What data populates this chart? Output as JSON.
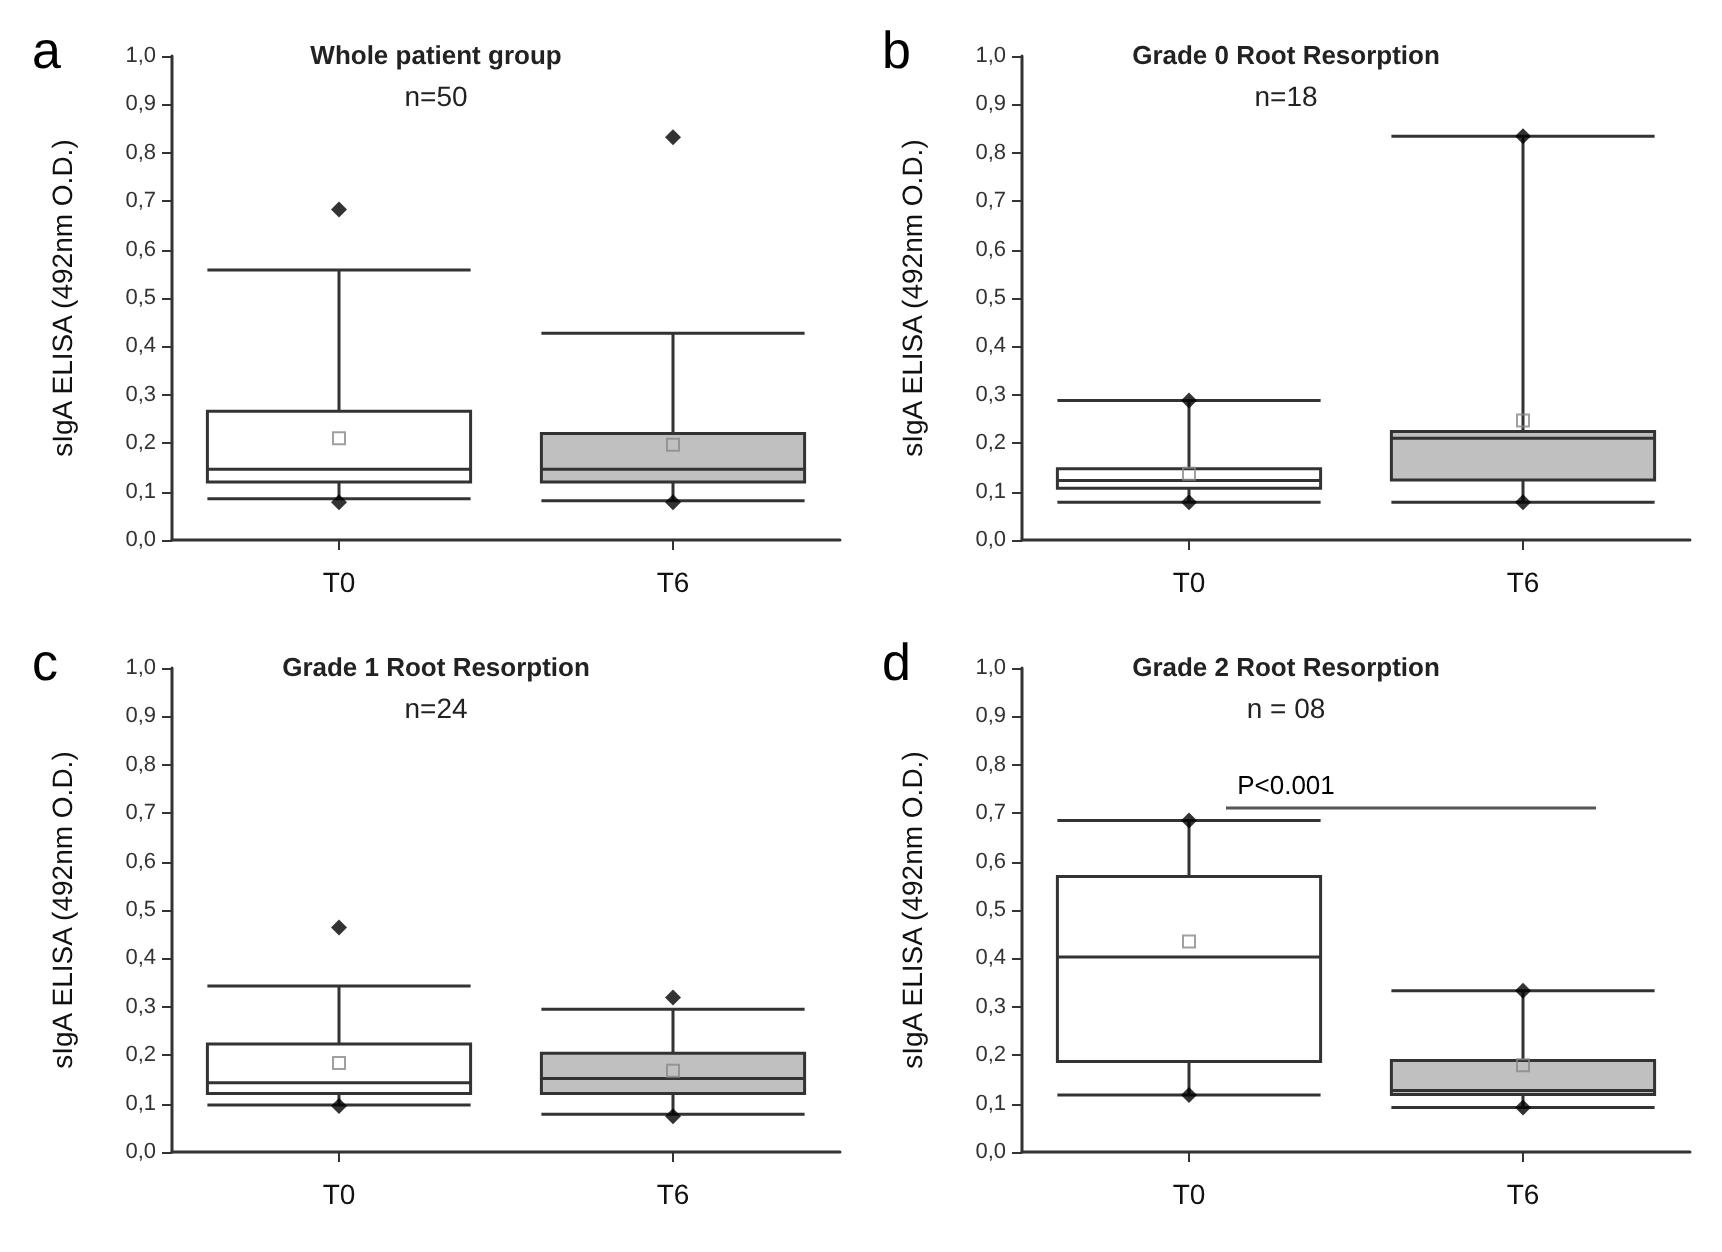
{
  "chart_data": [
    {
      "type": "box",
      "title": "Whole patient group",
      "subtitle": "n=50",
      "ylabel": "sIgA ELISA (492nm O.D.)",
      "categories": [
        "T0",
        "T6"
      ],
      "colors": [
        "#ffffff",
        "#c0c0c0"
      ],
      "ylim": [
        0,
        1
      ],
      "yticks": [
        {
          "value": 0,
          "label": "0,0"
        },
        {
          "value": 0.1,
          "label": "0,1"
        },
        {
          "value": 0.2,
          "label": "0,2"
        },
        {
          "value": 0.3,
          "label": "0,3"
        },
        {
          "value": 0.4,
          "label": "0,4"
        },
        {
          "value": 0.5,
          "label": "0,5"
        },
        {
          "value": 0.6,
          "label": "0,6"
        },
        {
          "value": 0.7,
          "label": "0,7"
        },
        {
          "value": 0.8,
          "label": "0,8"
        },
        {
          "value": 0.9,
          "label": "0,9"
        },
        {
          "value": 1,
          "label": "1,0"
        }
      ],
      "annotations": [
        "a"
      ],
      "boxes": [
        {
          "low": 0.085,
          "q1": 0.12,
          "median": 0.146,
          "q3": 0.266,
          "high": 0.558,
          "mean": 0.21,
          "outliers": [
            0.683,
            0.078
          ]
        },
        {
          "low": 0.081,
          "q1": 0.12,
          "median": 0.146,
          "q3": 0.22,
          "high": 0.427,
          "mean": 0.197,
          "outliers": [
            0.832,
            0.078
          ]
        }
      ]
    },
    {
      "type": "box",
      "title": "Grade 0 Root Resorption",
      "subtitle": "n=18",
      "ylabel": "sIgA ELISA (492nm O.D.)",
      "categories": [
        "T0",
        "T6"
      ],
      "colors": [
        "#ffffff",
        "#c0c0c0"
      ],
      "ylim": [
        0,
        1
      ],
      "yticks": [
        {
          "value": 0,
          "label": "0,0"
        },
        {
          "value": 0.1,
          "label": "0,1"
        },
        {
          "value": 0.2,
          "label": "0,2"
        },
        {
          "value": 0.3,
          "label": "0,3"
        },
        {
          "value": 0.4,
          "label": "0,4"
        },
        {
          "value": 0.5,
          "label": "0,5"
        },
        {
          "value": 0.6,
          "label": "0,6"
        },
        {
          "value": 0.7,
          "label": "0,7"
        },
        {
          "value": 0.8,
          "label": "0,8"
        },
        {
          "value": 0.9,
          "label": "0,9"
        },
        {
          "value": 1,
          "label": "1,0"
        }
      ],
      "annotations": [
        "b"
      ],
      "boxes": [
        {
          "low": 0.078,
          "q1": 0.107,
          "median": 0.123,
          "q3": 0.147,
          "high": 0.288,
          "mean": 0.137,
          "outliers": [
            0.288,
            0.078
          ]
        },
        {
          "low": 0.078,
          "q1": 0.124,
          "median": 0.21,
          "q3": 0.224,
          "high": 0.834,
          "mean": 0.247,
          "outliers": [
            0.834,
            0.078
          ]
        }
      ]
    },
    {
      "type": "box",
      "title": "Grade 1 Root Resorption",
      "subtitle": "n=24",
      "ylabel": "sIgA ELISA (492nm O.D.)",
      "categories": [
        "T0",
        "T6"
      ],
      "colors": [
        "#ffffff",
        "#c0c0c0"
      ],
      "ylim": [
        0,
        1
      ],
      "yticks": [
        {
          "value": 0,
          "label": "0,0"
        },
        {
          "value": 0.1,
          "label": "0,1"
        },
        {
          "value": 0.2,
          "label": "0,2"
        },
        {
          "value": 0.3,
          "label": "0,3"
        },
        {
          "value": 0.4,
          "label": "0,4"
        },
        {
          "value": 0.5,
          "label": "0,5"
        },
        {
          "value": 0.6,
          "label": "0,6"
        },
        {
          "value": 0.7,
          "label": "0,7"
        },
        {
          "value": 0.8,
          "label": "0,8"
        },
        {
          "value": 0.9,
          "label": "0,9"
        },
        {
          "value": 1,
          "label": "1,0"
        }
      ],
      "annotations": [
        "c"
      ],
      "boxes": [
        {
          "low": 0.097,
          "q1": 0.121,
          "median": 0.143,
          "q3": 0.223,
          "high": 0.343,
          "mean": 0.184,
          "outliers": [
            0.464,
            0.095
          ]
        },
        {
          "low": 0.078,
          "q1": 0.121,
          "median": 0.152,
          "q3": 0.204,
          "high": 0.295,
          "mean": 0.168,
          "outliers": [
            0.319,
            0.074
          ]
        }
      ]
    },
    {
      "type": "box",
      "title": "Grade 2 Root Resorption",
      "subtitle": "n = 08",
      "ylabel": "sIgA ELISA (492nm O.D.)",
      "categories": [
        "T0",
        "T6"
      ],
      "colors": [
        "#ffffff",
        "#c0c0c0"
      ],
      "ylim": [
        0,
        1
      ],
      "yticks": [
        {
          "value": 0,
          "label": "0,0"
        },
        {
          "value": 0.1,
          "label": "0,1"
        },
        {
          "value": 0.2,
          "label": "0,2"
        },
        {
          "value": 0.3,
          "label": "0,3"
        },
        {
          "value": 0.4,
          "label": "0,4"
        },
        {
          "value": 0.5,
          "label": "0,5"
        },
        {
          "value": 0.6,
          "label": "0,6"
        },
        {
          "value": 0.7,
          "label": "0,7"
        },
        {
          "value": 0.8,
          "label": "0,8"
        },
        {
          "value": 0.9,
          "label": "0,9"
        },
        {
          "value": 1,
          "label": "1,0"
        }
      ],
      "annotations": [
        "d",
        "P<0.001"
      ],
      "boxes": [
        {
          "low": 0.118,
          "q1": 0.187,
          "median": 0.403,
          "q3": 0.569,
          "high": 0.685,
          "mean": 0.435,
          "outliers": [
            0.685,
            0.118
          ]
        },
        {
          "low": 0.092,
          "q1": 0.119,
          "median": 0.127,
          "q3": 0.189,
          "high": 0.333,
          "mean": 0.179,
          "outliers": [
            0.333,
            0.092
          ]
        }
      ]
    }
  ]
}
